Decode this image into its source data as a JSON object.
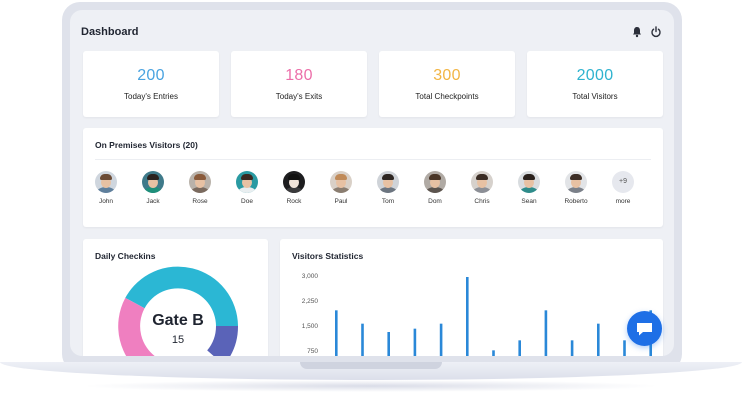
{
  "header": {
    "title": "Dashboard",
    "icons": [
      "bell-icon",
      "power-icon"
    ]
  },
  "stats": [
    {
      "value": "200",
      "label": "Today's Entries",
      "color": "#4aa3e0"
    },
    {
      "value": "180",
      "label": "Today's Exits",
      "color": "#ec6fa9"
    },
    {
      "value": "300",
      "label": "Total Checkpoints",
      "color": "#f2b544"
    },
    {
      "value": "2000",
      "label": "Total Visitors",
      "color": "#2fb3cf"
    }
  ],
  "visitors": {
    "title": "On Premises Visitors (20)",
    "people": [
      {
        "name": "John"
      },
      {
        "name": "Jack"
      },
      {
        "name": "Rose"
      },
      {
        "name": "Doe"
      },
      {
        "name": "Rock"
      },
      {
        "name": "Paul"
      },
      {
        "name": "Tom"
      },
      {
        "name": "Dom"
      },
      {
        "name": "Chris"
      },
      {
        "name": "Sean"
      },
      {
        "name": "Roberto"
      }
    ],
    "more": {
      "badge": "+9",
      "label": "more"
    }
  },
  "daily_checkins": {
    "title": "Daily Checkins",
    "center_label": "Gate B",
    "center_value": "15",
    "colors": {
      "teal": "#2bb7d4",
      "pink": "#ef7fc0",
      "indigo": "#5a63b8"
    }
  },
  "visitors_statistics": {
    "title": "Visitors Statistics",
    "chart_data": {
      "type": "bar",
      "ytick_labels": [
        "3,000",
        "2,250",
        "1,500",
        "750"
      ],
      "ylim": [
        750,
        3000
      ],
      "values": [
        2000,
        1600,
        1350,
        1450,
        1600,
        3000,
        800,
        1100,
        2000,
        1100,
        1600,
        1100,
        2000
      ],
      "bar_color": "#2a88d8"
    }
  }
}
